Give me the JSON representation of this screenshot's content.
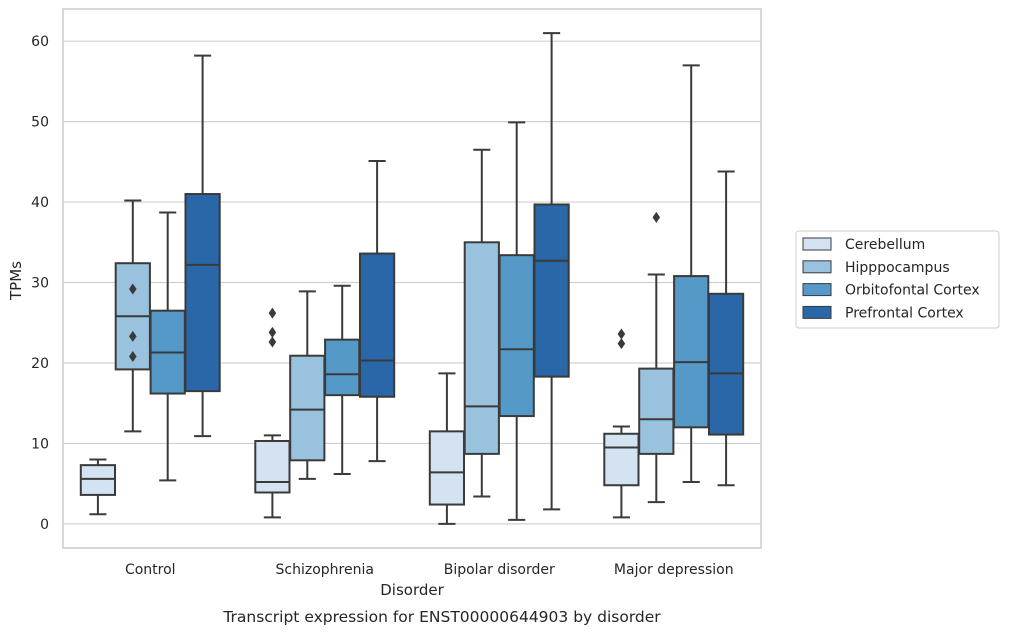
{
  "chart_data": {
    "type": "box",
    "xlabel": "Disorder",
    "ylabel": "TPMs",
    "caption": "Transcript expression for ENST00000644903 by disorder",
    "ylim": [
      -3,
      64
    ],
    "yticks": [
      0,
      10,
      20,
      30,
      40,
      50,
      60
    ],
    "grid": "horizontal",
    "legend_position": "right",
    "categories": [
      "Control",
      "Schizophrenia",
      "Bipolar disorder",
      "Major depression"
    ],
    "series": [
      {
        "name": "Cerebellum",
        "color": "#d4e3f2",
        "boxes": [
          {
            "whislo": 1.2,
            "q1": 3.6,
            "med": 5.6,
            "q3": 7.3,
            "whishi": 8.0,
            "fliers": []
          },
          {
            "whislo": 0.8,
            "q1": 3.9,
            "med": 5.2,
            "q3": 10.3,
            "whislo2": null,
            "whishi": 11.0,
            "fliers": [
              22.6,
              23.8,
              26.2
            ]
          },
          {
            "whislo": 0.0,
            "q1": 2.4,
            "med": 6.4,
            "q3": 11.5,
            "whishi": 18.7,
            "fliers": []
          },
          {
            "whislo": 0.8,
            "q1": 4.8,
            "med": 9.5,
            "q3": 11.2,
            "whishi": 12.1,
            "fliers": [
              22.4,
              23.6
            ]
          }
        ]
      },
      {
        "name": "Hipppocampus",
        "color": "#98c2de",
        "boxes": [
          {
            "whislo": 11.5,
            "q1": 19.2,
            "med": 25.8,
            "q3": 32.4,
            "whishi": 40.2,
            "fliers": [
              20.8,
              23.3,
              29.2
            ]
          },
          {
            "whislo": 5.6,
            "q1": 7.9,
            "med": 14.2,
            "q3": 20.9,
            "whishi": 28.9,
            "fliers": []
          },
          {
            "whislo": 3.4,
            "q1": 8.7,
            "med": 14.6,
            "q3": 35.0,
            "whishi": 46.5,
            "fliers": []
          },
          {
            "whislo": 2.7,
            "q1": 8.7,
            "med": 13.0,
            "q3": 19.3,
            "whishi": 31.0,
            "fliers": [
              38.1
            ]
          }
        ]
      },
      {
        "name": "Orbitofontal Cortex",
        "color": "#5499c7",
        "boxes": [
          {
            "whislo": 5.4,
            "q1": 16.2,
            "med": 21.3,
            "q3": 26.5,
            "whishi": 38.7,
            "fliers": []
          },
          {
            "whislo": 6.2,
            "q1": 16.0,
            "med": 18.6,
            "q3": 22.9,
            "whishi": 29.6,
            "fliers": []
          },
          {
            "whislo": 0.5,
            "q1": 13.4,
            "med": 21.7,
            "q3": 33.4,
            "whishi": 49.9,
            "fliers": []
          },
          {
            "whislo": 5.2,
            "q1": 12.0,
            "med": 20.1,
            "q3": 30.8,
            "whishi": 57.0,
            "fliers": []
          }
        ]
      },
      {
        "name": "Prefrontal Cortex",
        "color": "#2a67a8",
        "boxes": [
          {
            "whislo": 10.9,
            "q1": 16.5,
            "med": 32.2,
            "q3": 41.0,
            "whishi": 58.2,
            "fliers": []
          },
          {
            "whislo": 7.8,
            "q1": 15.8,
            "med": 20.3,
            "q3": 33.6,
            "whishi": 45.1,
            "fliers": []
          },
          {
            "whislo": 1.8,
            "q1": 18.3,
            "med": 32.7,
            "q3": 39.7,
            "whishi": 61.0,
            "fliers": []
          },
          {
            "whislo": 4.8,
            "q1": 11.1,
            "med": 18.7,
            "q3": 28.6,
            "whishi": 43.8,
            "fliers": []
          }
        ]
      }
    ]
  }
}
